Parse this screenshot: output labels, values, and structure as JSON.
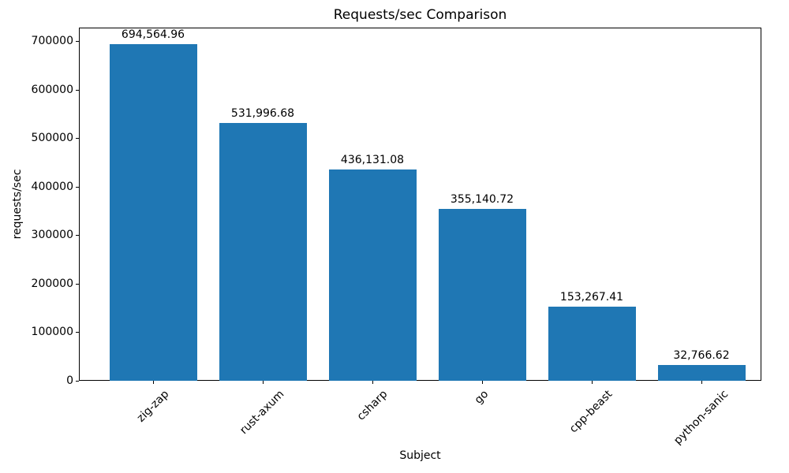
{
  "figure": {
    "title": "Requests/sec Comparison"
  },
  "chart_data": {
    "type": "bar",
    "title": "Requests/sec Comparison",
    "xlabel": "Subject",
    "ylabel": "requests/sec",
    "categories": [
      "zig-zap",
      "rust-axum",
      "csharp",
      "go",
      "cpp-beast",
      "python-sanic"
    ],
    "values": [
      694564.96,
      531996.68,
      436131.08,
      355140.72,
      153267.41,
      32766.62
    ],
    "value_labels": [
      "694,564.96",
      "531,996.68",
      "436,131.08",
      "355,140.72",
      "153,267.41",
      "32,766.62"
    ],
    "yticks": [
      0,
      100000,
      200000,
      300000,
      400000,
      500000,
      600000,
      700000
    ],
    "ytick_labels": [
      "0",
      "100000",
      "200000",
      "300000",
      "400000",
      "500000",
      "600000",
      "700000"
    ],
    "ylim": [
      0,
      729293
    ],
    "bar_color": "#1f77b4",
    "grid": false,
    "legend": null
  }
}
